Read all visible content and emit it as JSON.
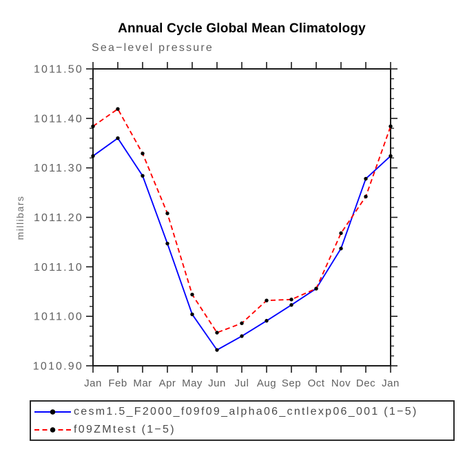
{
  "chart_data": {
    "type": "line",
    "title": "Annual Cycle Global Mean Climatology",
    "subtitle": "Sea−level pressure",
    "ylabel": "millibars",
    "xlabel": "",
    "x_categories": [
      "Jan",
      "Feb",
      "Mar",
      "Apr",
      "May",
      "Jun",
      "Jul",
      "Aug",
      "Sep",
      "Oct",
      "Nov",
      "Dec",
      "Jan"
    ],
    "ylim": [
      1010.9,
      1011.5
    ],
    "y_major_step": 0.1,
    "y_minor_step": 0.02,
    "y_ticks": [
      {
        "value": 1010.9,
        "label": "1010.90"
      },
      {
        "value": 1011.0,
        "label": "1011.00"
      },
      {
        "value": 1011.1,
        "label": "1011.10"
      },
      {
        "value": 1011.2,
        "label": "1011.20"
      },
      {
        "value": 1011.3,
        "label": "1011.30"
      },
      {
        "value": 1011.4,
        "label": "1011.40"
      },
      {
        "value": 1011.5,
        "label": "1011.50"
      }
    ],
    "grid": false,
    "legend_position": "bottom-left-box",
    "marker": "filled-circle",
    "marker_color": "#000000",
    "series": [
      {
        "name": "cesm1.5_F2000_f09f09_alpha06_cntlexp06_001 (1−5)",
        "color": "#0000ff",
        "style": "solid",
        "values": [
          1011.324,
          1011.36,
          1011.284,
          1011.147,
          1011.004,
          1010.932,
          1010.96,
          1010.991,
          1011.023,
          1011.056,
          1011.137,
          1011.278,
          1011.324
        ]
      },
      {
        "name": "f09ZMtest (1−5)",
        "color": "#ff0000",
        "style": "dashed",
        "values": [
          1011.384,
          1011.419,
          1011.329,
          1011.208,
          1011.044,
          1010.967,
          1010.986,
          1011.032,
          1011.034,
          1011.056,
          1011.168,
          1011.242,
          1011.384
        ]
      }
    ],
    "colors": {
      "frame": "#1a1a1a",
      "tick_label": "#606060",
      "month_label": "#606060",
      "title": "#000000",
      "subtitle": "#5f5f5f",
      "ylabel_color": "#6e6e6e",
      "legend_text": "#4a4a4a",
      "marker": "#000000"
    }
  }
}
